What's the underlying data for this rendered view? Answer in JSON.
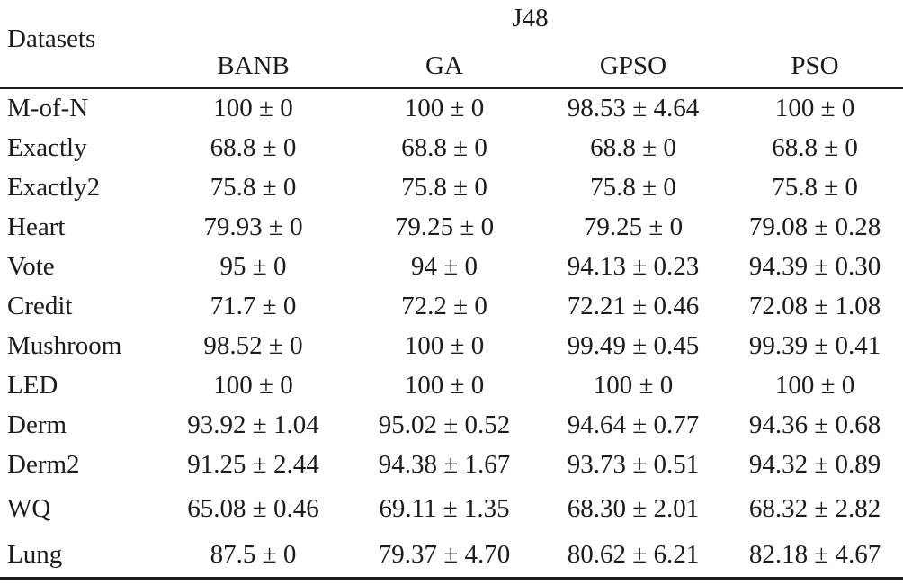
{
  "table": {
    "corner_header": "Datasets",
    "group_header": "J48",
    "columns": [
      "BANB",
      "GA",
      "GPSO",
      "PSO"
    ],
    "rows": [
      {
        "dataset": "M-of-N",
        "values": [
          "100 ± 0",
          "100 ± 0",
          "98.53 ± 4.64",
          "100 ± 0"
        ]
      },
      {
        "dataset": "Exactly",
        "values": [
          "68.8 ± 0",
          "68.8 ± 0",
          "68.8 ± 0",
          "68.8 ± 0"
        ]
      },
      {
        "dataset": "Exactly2",
        "values": [
          "75.8 ± 0",
          "75.8 ± 0",
          "75.8 ± 0",
          "75.8 ± 0"
        ]
      },
      {
        "dataset": "Heart",
        "values": [
          "79.93 ± 0",
          "79.25 ± 0",
          "79.25 ± 0",
          "79.08 ± 0.28"
        ]
      },
      {
        "dataset": "Vote",
        "values": [
          "95 ± 0",
          "94 ± 0",
          "94.13 ± 0.23",
          "94.39 ± 0.30"
        ]
      },
      {
        "dataset": "Credit",
        "values": [
          "71.7 ± 0",
          "72.2 ± 0",
          "72.21 ± 0.46",
          "72.08 ± 1.08"
        ]
      },
      {
        "dataset": "Mushroom",
        "values": [
          "98.52 ± 0",
          "100 ± 0",
          "99.49 ± 0.45",
          "99.39 ± 0.41"
        ]
      },
      {
        "dataset": "LED",
        "values": [
          "100 ± 0",
          "100 ± 0",
          "100 ± 0",
          "100 ± 0"
        ]
      },
      {
        "dataset": "Derm",
        "values": [
          "93.92 ± 1.04",
          "95.02 ± 0.52",
          "94.64 ± 0.77",
          "94.36 ± 0.68"
        ]
      },
      {
        "dataset": "Derm2",
        "values": [
          "91.25 ± 2.44",
          "94.38 ± 1.67",
          "93.73 ± 0.51",
          "94.32 ± 0.89"
        ]
      },
      {
        "dataset": "WQ",
        "values": [
          "65.08 ± 0.46",
          "69.11 ± 1.35",
          "68.30 ± 2.01",
          "68.32 ± 2.82"
        ]
      },
      {
        "dataset": "Lung",
        "values": [
          "87.5 ± 0",
          "79.37 ± 4.70",
          "80.62 ± 6.21",
          "82.18 ± 4.67"
        ]
      }
    ],
    "colors": {
      "text": "#1c1c1c",
      "rule": "#1c1c1c",
      "background": "#ffffff"
    }
  }
}
